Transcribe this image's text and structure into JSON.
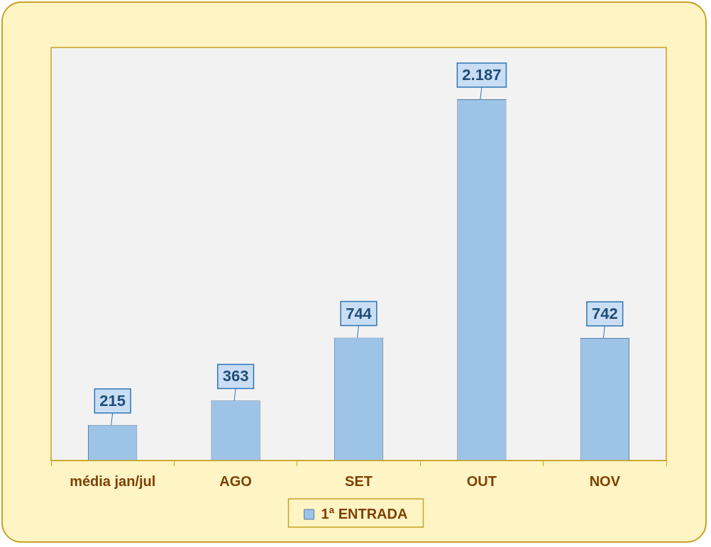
{
  "chart_data": {
    "type": "bar",
    "categories": [
      "média jan/jul",
      "AGO",
      "SET",
      "OUT",
      "NOV"
    ],
    "series": [
      {
        "name": "1ª ENTRADA",
        "color": "#9dc3e6",
        "values": [
          215,
          363,
          744,
          2187,
          742
        ],
        "value_labels": [
          "215",
          "363",
          "744",
          "2.187",
          "742"
        ]
      }
    ],
    "ylim": [
      0,
      2500
    ],
    "grid": false,
    "legend": "bottom",
    "data_labels": true,
    "tick_labels": "x"
  }
}
